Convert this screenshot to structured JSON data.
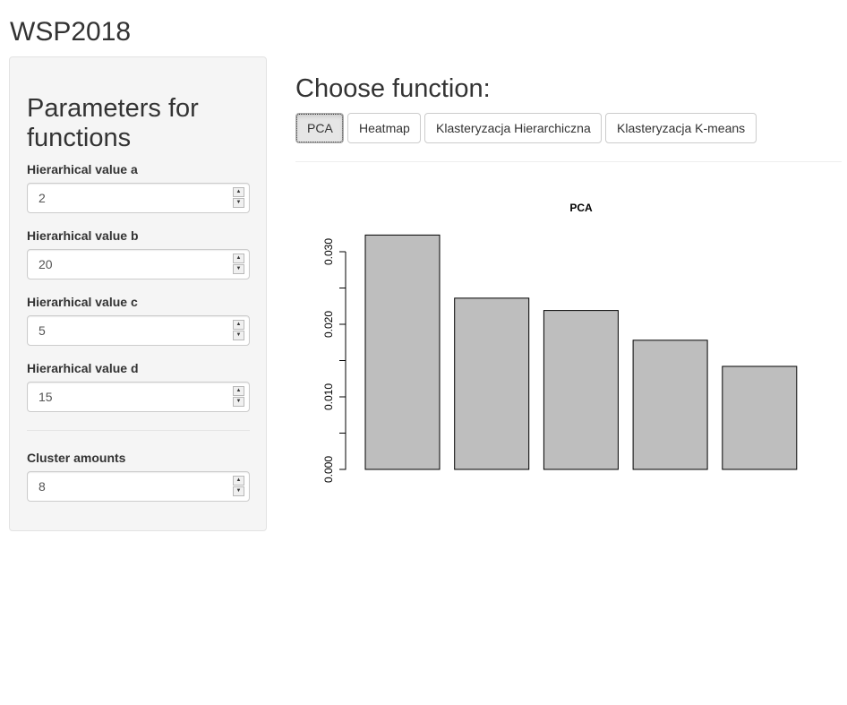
{
  "app": {
    "title": "WSP2018"
  },
  "sidebar": {
    "heading": "Parameters for functions",
    "fields": [
      {
        "label": "Hierarhical value a",
        "value": "2"
      },
      {
        "label": "Hierarhical value b",
        "value": "20"
      },
      {
        "label": "Hierarhical value c",
        "value": "5"
      },
      {
        "label": "Hierarhical value d",
        "value": "15"
      },
      {
        "label": "Cluster amounts",
        "value": "8"
      }
    ]
  },
  "main": {
    "heading": "Choose function:",
    "tabs": [
      {
        "label": "PCA",
        "active": true
      },
      {
        "label": "Heatmap",
        "active": false
      },
      {
        "label": "Klasteryzacja Hierarchiczna",
        "active": false
      },
      {
        "label": "Klasteryzacja K-means",
        "active": false
      }
    ]
  },
  "chart_data": {
    "type": "bar",
    "title": "PCA",
    "categories": [
      "",
      "",
      "",
      "",
      ""
    ],
    "values": [
      0.0323,
      0.0236,
      0.0219,
      0.0178,
      0.0142
    ],
    "ylim": [
      0,
      0.0323
    ],
    "yticks": [
      0.0,
      0.01,
      0.02,
      0.03
    ],
    "ytick_labels": [
      "0.000",
      "0.010",
      "0.020",
      "0.030"
    ],
    "xlabel": "",
    "ylabel": "",
    "grid": false,
    "bar_color": "#bebebe",
    "bar_border": "#000000"
  }
}
